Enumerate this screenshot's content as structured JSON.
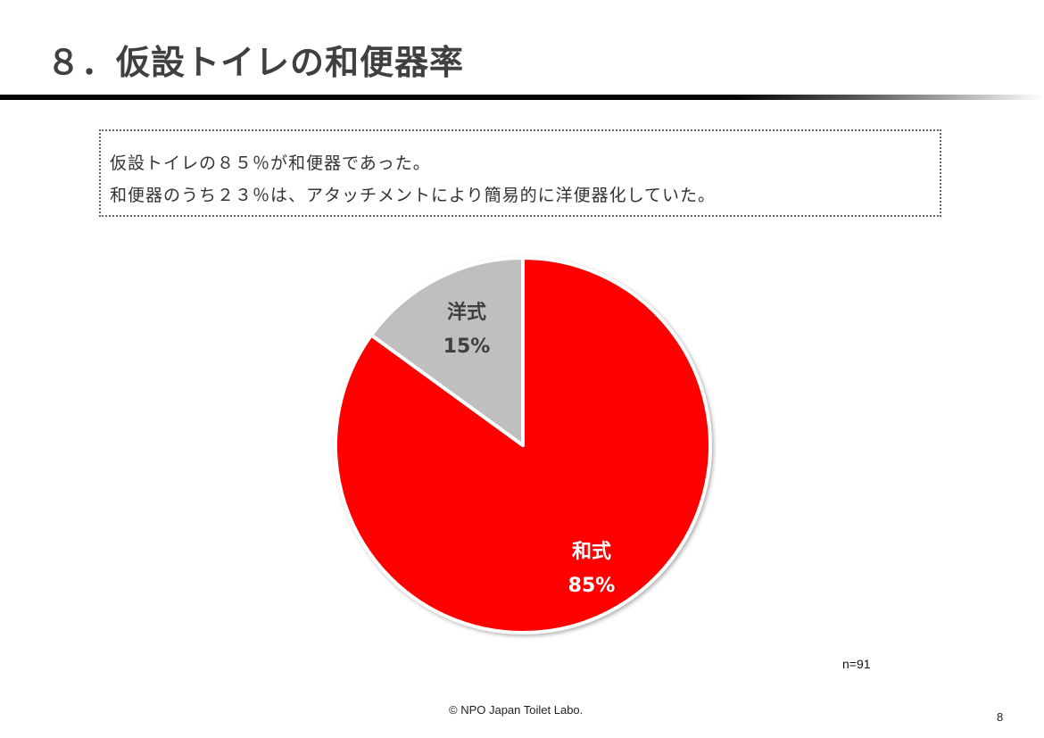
{
  "slide": {
    "title": "８．仮設トイレの和便器率",
    "page_number": "8",
    "copyright": "© NPO Japan Toilet Labo."
  },
  "summary": {
    "lines": [
      "仮設トイレの８５％が和便器であった。",
      "和便器のうち２３％は、アタッチメントにより簡易的に洋便器化していた。"
    ]
  },
  "chart": {
    "sample_size": "n=91",
    "slices": [
      {
        "name": "和式",
        "percent_label": "85%",
        "value": 85,
        "color": "#ff0000",
        "label_color": "#ffffff"
      },
      {
        "name": "洋式",
        "percent_label": "15%",
        "value": 15,
        "color": "#bfbfbf",
        "label_color": "#404040"
      }
    ]
  },
  "chart_data": {
    "type": "pie",
    "title": "仮設トイレの和便器率",
    "categories": [
      "和式",
      "洋式"
    ],
    "values": [
      85,
      15
    ],
    "unit": "%",
    "colors": [
      "#ff0000",
      "#bfbfbf"
    ],
    "data_labels": [
      "和式 85%",
      "洋式 15%"
    ],
    "annotations": [
      "n=91"
    ],
    "start_angle": "12 o'clock",
    "direction": "clockwise from top for 和式",
    "legend": "none (labels inside slices)"
  }
}
